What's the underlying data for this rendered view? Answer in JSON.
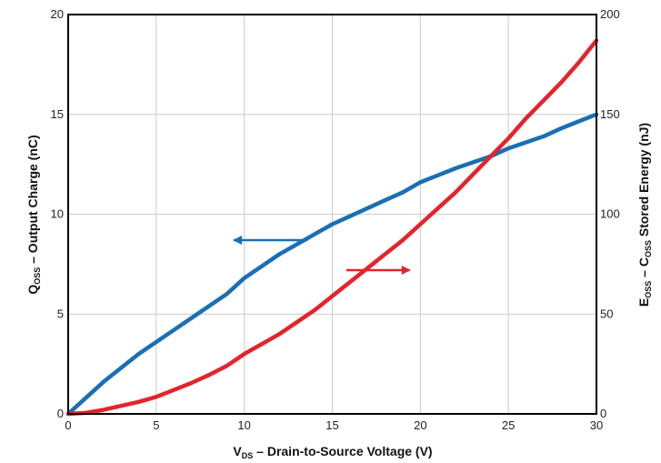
{
  "chart_data": {
    "type": "line",
    "xlabel": {
      "main": "V",
      "sub": "DS",
      "rest": " – Drain-to-Source Voltage (V)"
    },
    "ylabel_left": {
      "main": "Q",
      "sub": "OSS",
      "rest": " – Output Charge (nC)"
    },
    "ylabel_right": {
      "main": "E",
      "sub": "OSS",
      "mid": " – C",
      "sub2": "OSS",
      "rest": " Stored Energy (nJ)"
    },
    "xlim": [
      0,
      30
    ],
    "ylim_left": [
      0,
      20
    ],
    "ylim_right": [
      0,
      200
    ],
    "x_ticks": [
      "0",
      "5",
      "10",
      "15",
      "20",
      "25",
      "30"
    ],
    "y_left_ticks": [
      "0",
      "5",
      "10",
      "15",
      "20"
    ],
    "y_right_ticks": [
      "0",
      "50",
      "100",
      "150",
      "200"
    ],
    "grid": true,
    "series": [
      {
        "axis": "left",
        "color": "#1a6fb5",
        "x": [
          0,
          1,
          2,
          3,
          4,
          5,
          6,
          7,
          8,
          9,
          10,
          11,
          12,
          13,
          14,
          15,
          16,
          17,
          18,
          19,
          20,
          21,
          22,
          23,
          24,
          25,
          26,
          27,
          28,
          29,
          30
        ],
        "y": [
          0,
          0.8,
          1.6,
          2.3,
          3.0,
          3.6,
          4.2,
          4.8,
          5.4,
          6.0,
          6.8,
          7.4,
          8.0,
          8.5,
          9.0,
          9.5,
          9.9,
          10.3,
          10.7,
          11.1,
          11.6,
          11.95,
          12.3,
          12.6,
          12.9,
          13.3,
          13.6,
          13.9,
          14.3,
          14.65,
          15.0
        ]
      },
      {
        "axis": "right",
        "color": "#e3242b",
        "x": [
          0,
          1,
          2,
          3,
          4,
          5,
          6,
          7,
          8,
          9,
          10,
          11,
          12,
          13,
          14,
          15,
          16,
          17,
          18,
          19,
          20,
          21,
          22,
          23,
          24,
          25,
          26,
          27,
          28,
          29,
          30
        ],
        "y": [
          0,
          0.5,
          2,
          4,
          6,
          8.5,
          12,
          15.5,
          19.5,
          24,
          30,
          35,
          40,
          46,
          52,
          59,
          66,
          73,
          80,
          87,
          95,
          103,
          111,
          120,
          129,
          138,
          148,
          157,
          166,
          176,
          187
        ]
      }
    ],
    "annotations": [
      {
        "type": "arrow",
        "direction": "left",
        "color": "#1a6fb5",
        "x_from": 13.6,
        "x_to": 9.4,
        "y": 8.7,
        "axis": "left"
      },
      {
        "type": "arrow",
        "direction": "right",
        "color": "#e3242b",
        "x_from": 15.8,
        "x_to": 19.4,
        "y": 72,
        "axis": "right"
      }
    ]
  }
}
